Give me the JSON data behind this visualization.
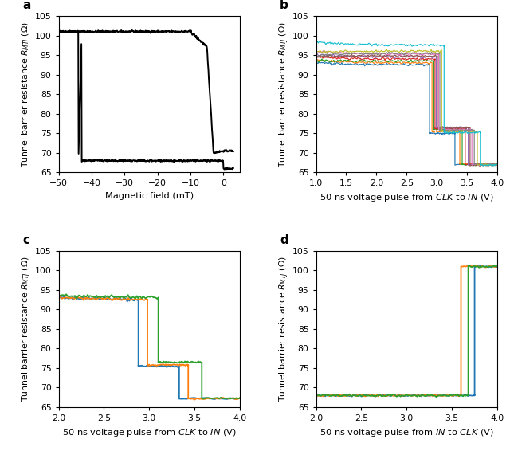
{
  "panel_a": {
    "title": "a",
    "xlabel": "Magnetic field (mT)",
    "ylabel": "Tunnel barrier resistance $R_{MTJ}$ (Ω)",
    "xlim": [
      -50,
      5
    ],
    "ylim": [
      65,
      105
    ],
    "xticks": [
      -50,
      -40,
      -30,
      -20,
      -10,
      0
    ],
    "yticks": [
      65,
      70,
      75,
      80,
      85,
      90,
      95,
      100,
      105
    ],
    "color": "#000000"
  },
  "panel_b": {
    "title": "b",
    "xlim": [
      1.0,
      4.0
    ],
    "ylim": [
      65,
      105
    ],
    "xticks": [
      1.0,
      1.5,
      2.0,
      2.5,
      3.0,
      3.5,
      4.0
    ],
    "yticks": [
      65,
      70,
      75,
      80,
      85,
      90,
      95,
      100,
      105
    ]
  },
  "panel_c": {
    "title": "c",
    "xlim": [
      2.0,
      4.0
    ],
    "ylim": [
      65,
      105
    ],
    "xticks": [
      2.0,
      2.5,
      3.0,
      3.5,
      4.0
    ],
    "yticks": [
      65,
      70,
      75,
      80,
      85,
      90,
      95,
      100,
      105
    ]
  },
  "panel_d": {
    "title": "d",
    "xlim": [
      2.0,
      4.0
    ],
    "ylim": [
      65,
      105
    ],
    "xticks": [
      2.0,
      2.5,
      3.0,
      3.5,
      4.0
    ],
    "yticks": [
      65,
      70,
      75,
      80,
      85,
      90,
      95,
      100,
      105
    ]
  },
  "ylabel_all": "Tunnel barrier resistance $R_{MTJ}$ (Ω)",
  "xlabel_b": "50 ns voltage pulse from $\\it{CLK}$ to $\\it{IN}$ (V)",
  "xlabel_c": "50 ns voltage pulse from $\\it{CLK}$ to $\\it{IN}$ (V)",
  "xlabel_d": "50 ns voltage pulse from $\\it{IN}$ to $\\it{CLK}$ (V)",
  "colors_b": [
    "#1f77b4",
    "#ff7f0e",
    "#2ca02c",
    "#d62728",
    "#9467bd",
    "#8c564b",
    "#e377c2",
    "#7f7f7f",
    "#bcbd22",
    "#17becf"
  ],
  "colors_c": [
    "#1f77b4",
    "#ff7f0e",
    "#2ca02c"
  ],
  "colors_d": [
    "#1f77b4",
    "#ff7f0e",
    "#2ca02c"
  ]
}
